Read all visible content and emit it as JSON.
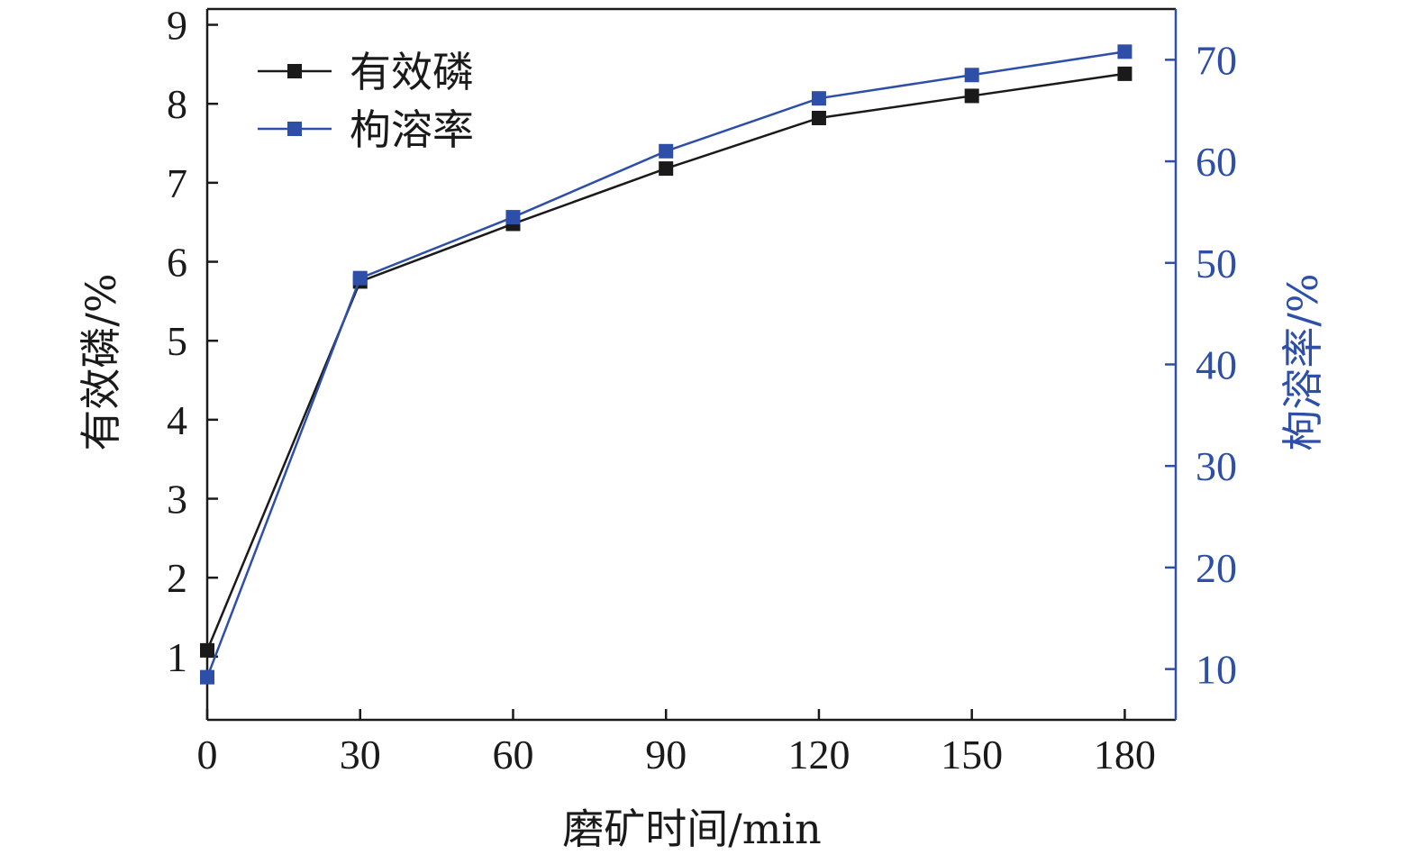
{
  "chart_data": {
    "type": "line",
    "x": [
      0,
      30,
      60,
      90,
      120,
      150,
      180
    ],
    "xlabel": "磨矿时间/min",
    "xlim": [
      0,
      190
    ],
    "xticks": [
      "0",
      "30",
      "60",
      "90",
      "120",
      "150",
      "180"
    ],
    "ylabel_left": "有效磷/%",
    "ylim_left": [
      0.2,
      9.2
    ],
    "yticks_left": [
      "1",
      "2",
      "3",
      "4",
      "5",
      "6",
      "7",
      "8",
      "9"
    ],
    "ylabel_right": "枸溶率/%",
    "ylim_right": [
      5,
      75
    ],
    "yticks_right": [
      "10",
      "20",
      "30",
      "40",
      "50",
      "60",
      "70"
    ],
    "series": [
      {
        "name": "有效磷",
        "axis": "left",
        "color": "#1a1a1a",
        "values": [
          1.08,
          5.75,
          6.48,
          7.18,
          7.82,
          8.1,
          8.38
        ]
      },
      {
        "name": "枸溶率",
        "axis": "right",
        "color": "#2e4fa8",
        "values": [
          9.2,
          48.5,
          54.5,
          61.0,
          66.2,
          68.5,
          70.8
        ]
      }
    ],
    "legend_position": "top-left",
    "grid": false
  }
}
